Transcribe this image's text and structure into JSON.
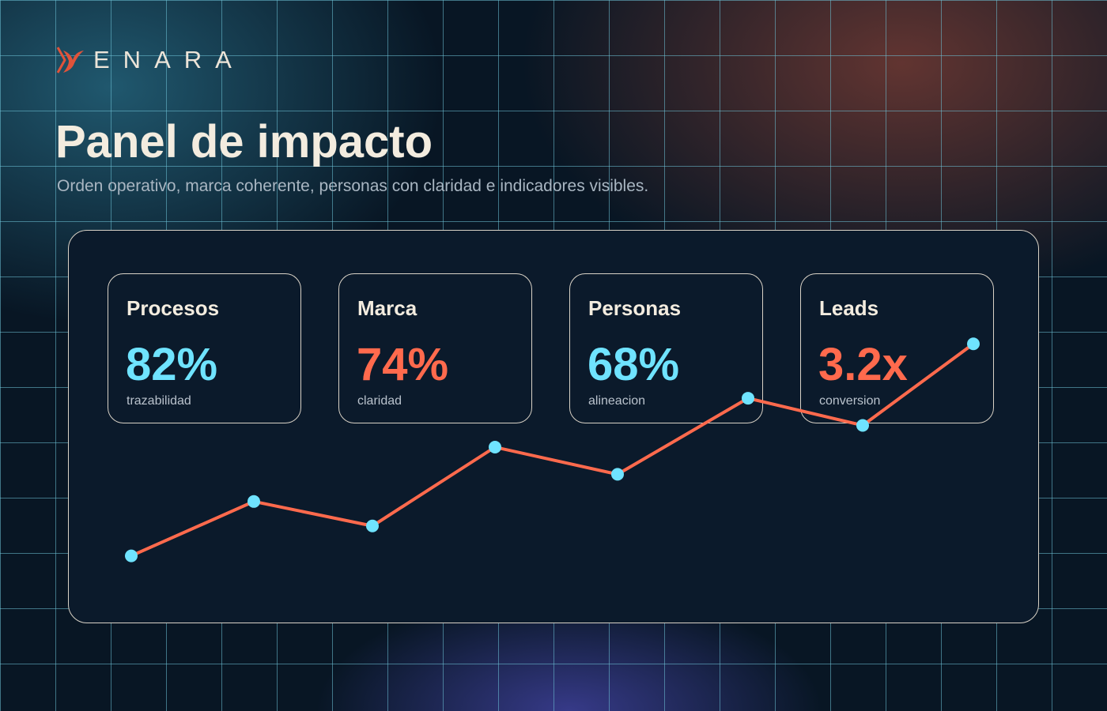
{
  "brand": {
    "name": "ENARA",
    "accent_color": "#ff6a4d",
    "secondary_color": "#6fe3ff"
  },
  "header": {
    "title": "Panel de impacto",
    "subtitle": "Orden operativo, marca coherente, personas con claridad e indicadores visibles."
  },
  "metrics": [
    {
      "label": "Procesos",
      "value": "82%",
      "caption": "trazabilidad",
      "color": "#6fe3ff"
    },
    {
      "label": "Marca",
      "value": "74%",
      "caption": "claridad",
      "color": "#ff6a4d"
    },
    {
      "label": "Personas",
      "value": "68%",
      "caption": "alineacion",
      "color": "#6fe3ff"
    },
    {
      "label": "Leads",
      "value": "3.2x",
      "caption": "conversion",
      "color": "#ff6a4d"
    }
  ],
  "chart_data": {
    "type": "line",
    "x": [
      1,
      2,
      3,
      4,
      5,
      6,
      7,
      8
    ],
    "y": [
      10,
      30,
      21,
      50,
      40,
      68,
      58,
      88
    ],
    "ylim": [
      0,
      100
    ],
    "grid": false,
    "line_color": "#ff6a4d",
    "marker_color": "#6fe3ff"
  }
}
